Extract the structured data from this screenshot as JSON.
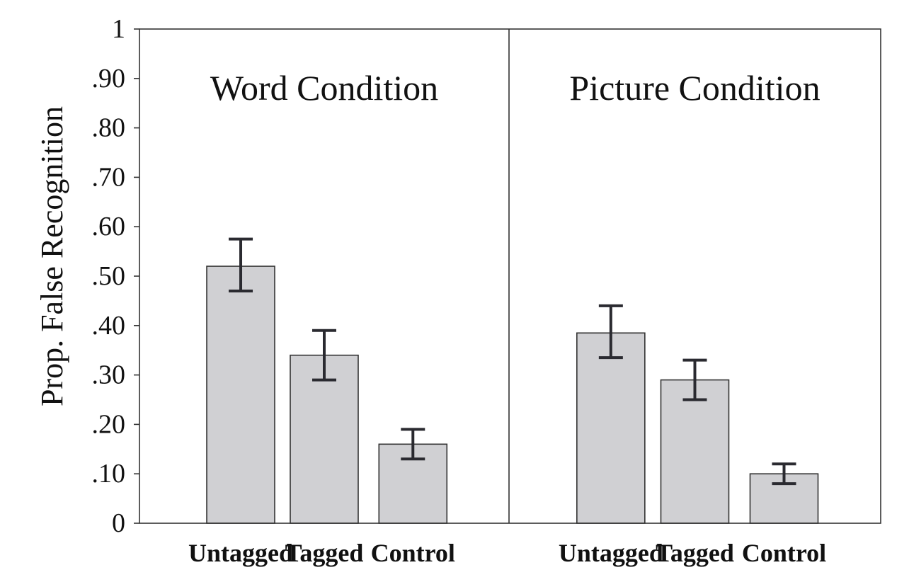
{
  "chart_data": {
    "type": "bar",
    "ylabel": "Prop. False Recognition",
    "ylim": [
      0,
      1
    ],
    "yticks": [
      {
        "value": 0,
        "label": "0"
      },
      {
        "value": 0.1,
        "label": ".10"
      },
      {
        "value": 0.2,
        "label": ".20"
      },
      {
        "value": 0.3,
        "label": ".30"
      },
      {
        "value": 0.4,
        "label": ".40"
      },
      {
        "value": 0.5,
        "label": ".50"
      },
      {
        "value": 0.6,
        "label": ".60"
      },
      {
        "value": 0.7,
        "label": ".70"
      },
      {
        "value": 0.8,
        "label": ".80"
      },
      {
        "value": 0.9,
        "label": ".90"
      },
      {
        "value": 1,
        "label": "1"
      }
    ],
    "grid": false,
    "bar_color": "#d0d0d3",
    "panels": [
      {
        "title": "Word Condition",
        "categories": [
          "Untagged",
          "Tagged",
          "Control"
        ],
        "values": [
          0.52,
          0.34,
          0.16
        ],
        "error_low": [
          0.47,
          0.29,
          0.13
        ],
        "error_high": [
          0.575,
          0.39,
          0.19
        ]
      },
      {
        "title": "Picture Condition",
        "categories": [
          "Untagged",
          "Tagged",
          "Control"
        ],
        "values": [
          0.385,
          0.29,
          0.1
        ],
        "error_low": [
          0.335,
          0.25,
          0.08
        ],
        "error_high": [
          0.44,
          0.33,
          0.12
        ]
      }
    ]
  }
}
